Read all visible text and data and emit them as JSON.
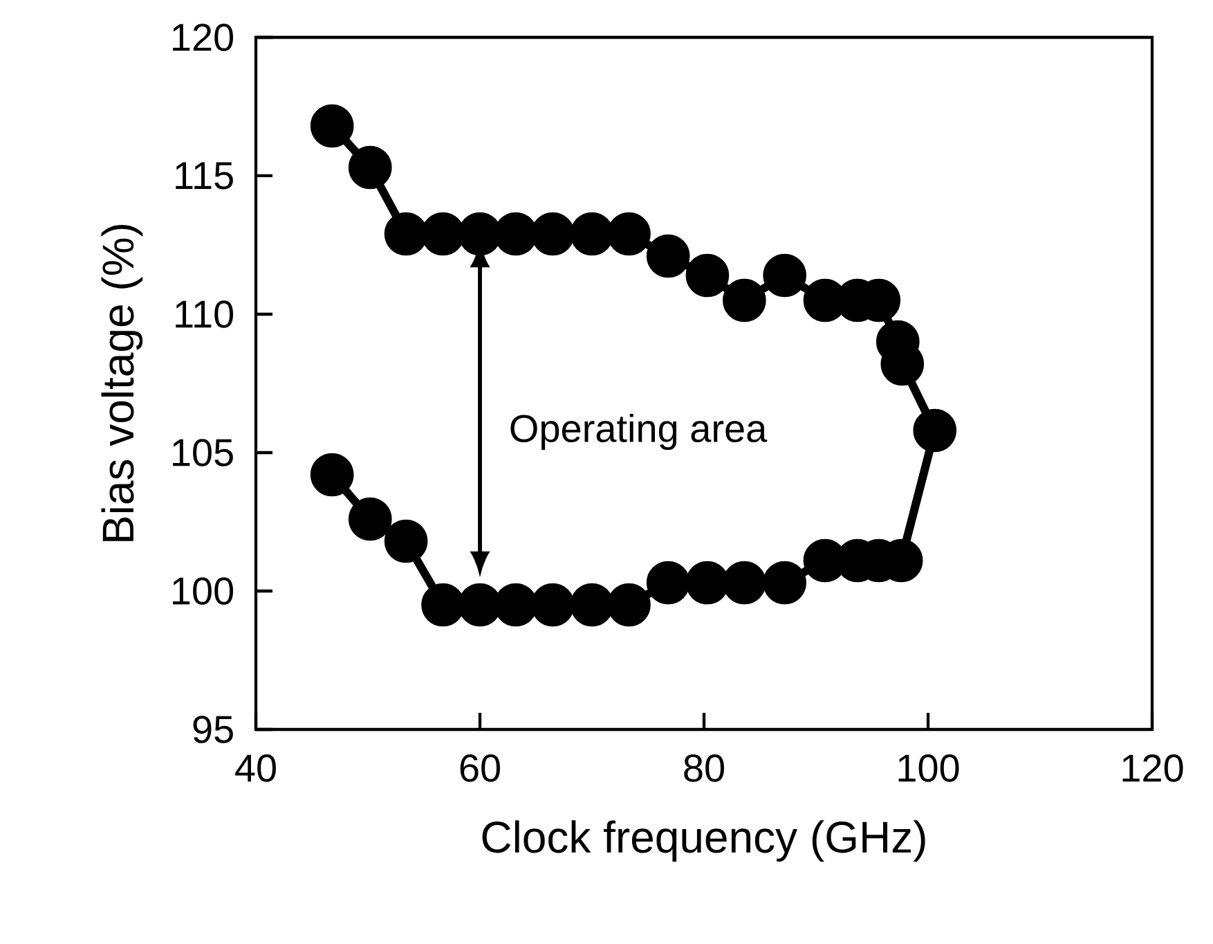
{
  "chart_data": {
    "type": "line",
    "xlabel": "Clock frequency (GHz)",
    "ylabel": "Bias voltage (%)",
    "annotations": [
      "Operating area"
    ],
    "series": [
      {
        "color": "#000000",
        "x": [
          46.8,
          50.2,
          53.4,
          56.7,
          60.0,
          63.2,
          66.5,
          70.0,
          73.3,
          76.8,
          80.3,
          83.6,
          87.2,
          90.8,
          93.7,
          95.6,
          97.3,
          97.7,
          100.6,
          97.6,
          95.6,
          93.7,
          90.8,
          87.2,
          83.6,
          80.3,
          76.8,
          73.3,
          70.0,
          66.5,
          63.2,
          60.0,
          56.7,
          53.4,
          50.2,
          46.8
        ],
        "values": [
          116.8,
          115.3,
          112.9,
          112.9,
          112.9,
          112.9,
          112.9,
          112.9,
          112.9,
          112.1,
          111.4,
          110.5,
          111.4,
          110.5,
          110.5,
          110.5,
          109.0,
          108.2,
          105.8,
          101.1,
          101.1,
          101.1,
          101.1,
          100.3,
          100.3,
          100.3,
          100.3,
          99.5,
          99.5,
          99.5,
          99.5,
          99.5,
          99.5,
          101.8,
          102.6,
          104.2
        ]
      }
    ],
    "xlim": [
      40,
      120
    ],
    "ylim": [
      95,
      120
    ],
    "xticks": [
      40,
      60,
      80,
      100,
      120
    ],
    "yticks": [
      95,
      100,
      105,
      110,
      115,
      120
    ],
    "marker": "circle",
    "line_style": "solid"
  }
}
